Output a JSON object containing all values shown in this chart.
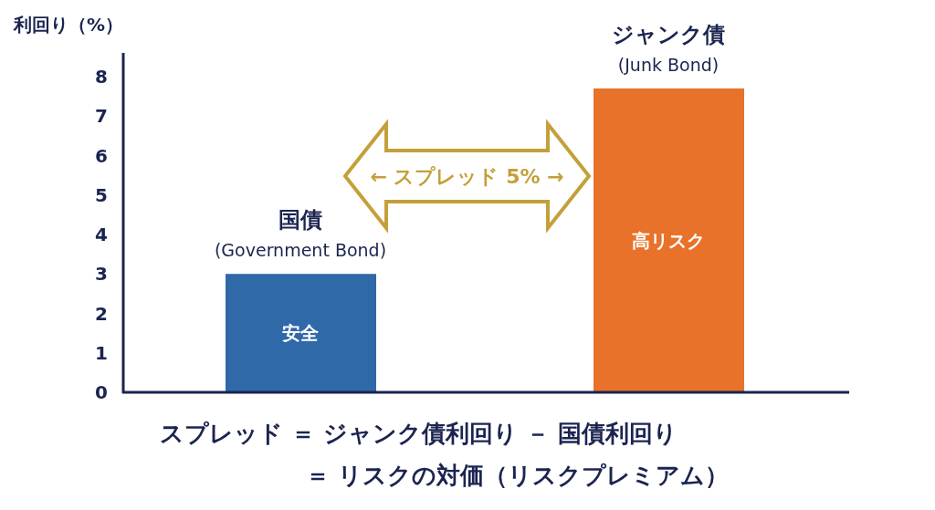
{
  "chart_data": {
    "type": "bar",
    "ylabel": "利回り（%）",
    "categories": [
      "国債\n(Government Bond)",
      "ジャンク債\n(Junk Bond)"
    ],
    "values": [
      3,
      7.7
    ],
    "colors": [
      "#2f69a8",
      "#e8722a"
    ],
    "value_labels": [
      "安全",
      "高リスク"
    ],
    "ylim": [
      0,
      8.6
    ],
    "yticks": [
      0,
      1,
      2,
      3,
      4,
      5,
      6,
      7,
      8
    ],
    "grid": false,
    "annotations": [
      "← スプレッド 5% →",
      "スプレッド ＝ ジャンク債利回り － 国債利回り",
      "＝ リスクの対価（リスクプレミアム）"
    ]
  }
}
